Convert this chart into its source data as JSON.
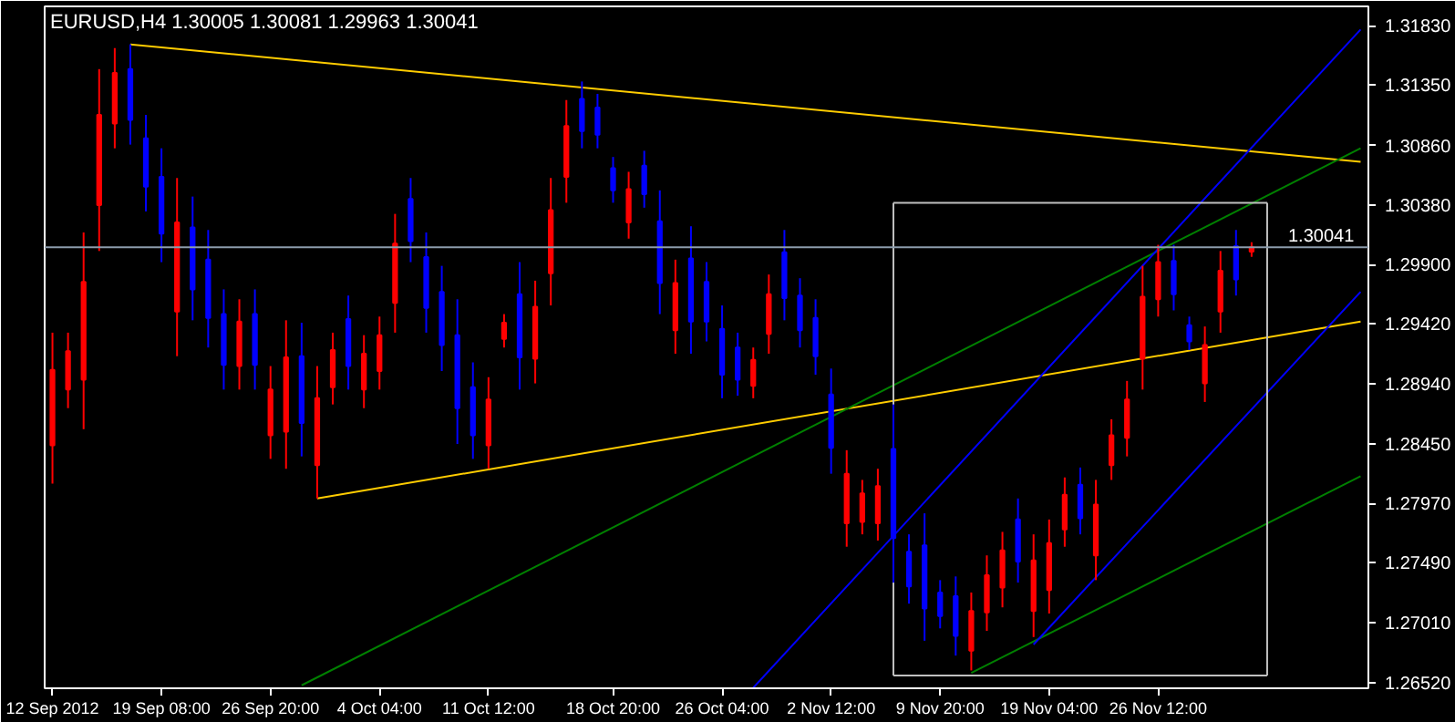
{
  "chart_data": {
    "type": "candlestick",
    "title": "EURUSD,H4  1.30005 1.30081 1.29963 1.30041",
    "categories": [
      "12 Sep 2012",
      null,
      null,
      null,
      null,
      null,
      null,
      "19 Sep 08:00",
      null,
      null,
      null,
      null,
      null,
      null,
      "26 Sep 20:00",
      null,
      null,
      null,
      null,
      null,
      null,
      "4 Oct 04:00",
      null,
      null,
      null,
      null,
      null,
      null,
      "11 Oct 12:00",
      null,
      null,
      null,
      null,
      null,
      null,
      null,
      "18 Oct 20:00",
      null,
      null,
      null,
      null,
      null,
      null,
      "26 Oct 04:00",
      null,
      null,
      null,
      null,
      null,
      null,
      "2 Nov 12:00",
      null,
      null,
      null,
      null,
      null,
      null,
      "9 Nov 20:00",
      null,
      null,
      null,
      null,
      null,
      null,
      "19 Nov 04:00",
      null,
      null,
      null,
      null,
      null,
      null,
      "26 Nov 12:00",
      null,
      null,
      null,
      null,
      null,
      null,
      null,
      null,
      null,
      null,
      null,
      null,
      null
    ],
    "ohlc": [
      [
        1.2844,
        1.2935,
        1.2813,
        1.2905
      ],
      [
        1.2889,
        1.2935,
        1.2874,
        1.292
      ],
      [
        1.2897,
        1.3016,
        1.2857,
        1.2976
      ],
      [
        1.3038,
        1.3148,
        1.3001,
        1.3111
      ],
      [
        1.3104,
        1.3165,
        1.3084,
        1.3145
      ],
      [
        1.3148,
        1.3168,
        1.3087,
        1.3107
      ],
      [
        1.3092,
        1.3111,
        1.3033,
        1.3053
      ],
      [
        1.3061,
        1.3084,
        1.2992,
        1.3015
      ],
      [
        1.2952,
        1.306,
        1.2916,
        1.3024
      ],
      [
        1.302,
        1.3045,
        1.2945,
        1.297
      ],
      [
        1.2994,
        1.3018,
        1.2923,
        1.2947
      ],
      [
        1.295,
        1.297,
        1.2889,
        1.2909
      ],
      [
        1.2908,
        1.2962,
        1.2889,
        1.2944
      ],
      [
        1.295,
        1.297,
        1.2889,
        1.2909
      ],
      [
        1.2852,
        1.2908,
        1.2833,
        1.2889
      ],
      [
        1.2855,
        1.2945,
        1.2825,
        1.2915
      ],
      [
        1.2916,
        1.2943,
        1.2835,
        1.2862
      ],
      [
        1.2828,
        1.2908,
        1.2801,
        1.2882
      ],
      [
        1.2891,
        1.2935,
        1.2877,
        1.2921
      ],
      [
        1.2946,
        1.2965,
        1.2889,
        1.2908
      ],
      [
        1.2889,
        1.2933,
        1.2874,
        1.2918
      ],
      [
        1.2904,
        1.2948,
        1.2889,
        1.2933
      ],
      [
        1.2959,
        1.3031,
        1.2935,
        1.3007
      ],
      [
        1.3043,
        1.306,
        1.2992,
        1.3009
      ],
      [
        1.2996,
        1.3016,
        1.2935,
        1.2955
      ],
      [
        1.2968,
        1.2989,
        1.2904,
        1.2925
      ],
      [
        1.2933,
        1.2962,
        1.2845,
        1.2874
      ],
      [
        1.2891,
        1.2911,
        1.2833,
        1.2852
      ],
      [
        1.2844,
        1.2899,
        1.2825,
        1.2881
      ],
      [
        1.293,
        1.295,
        1.2923,
        1.2943
      ],
      [
        1.2966,
        1.2992,
        1.2889,
        1.2915
      ],
      [
        1.2914,
        1.2977,
        1.2894,
        1.2956
      ],
      [
        1.2983,
        1.306,
        1.2957,
        1.3034
      ],
      [
        1.3061,
        1.3123,
        1.304,
        1.3102
      ],
      [
        1.3124,
        1.3138,
        1.3084,
        1.3098
      ],
      [
        1.3117,
        1.3128,
        1.3084,
        1.3095
      ],
      [
        1.3068,
        1.3077,
        1.304,
        1.305
      ],
      [
        1.3024,
        1.3065,
        1.3011,
        1.3051
      ],
      [
        1.307,
        1.3082,
        1.3036,
        1.3047
      ],
      [
        1.3025,
        1.305,
        1.295,
        1.2975
      ],
      [
        1.2937,
        1.2994,
        1.2918,
        1.2975
      ],
      [
        1.2995,
        1.3021,
        1.2918,
        1.2944
      ],
      [
        1.2976,
        1.2992,
        1.2928,
        1.2944
      ],
      [
        1.2938,
        1.2957,
        1.2882,
        1.2901
      ],
      [
        1.2923,
        1.2935,
        1.2884,
        1.2897
      ],
      [
        1.2892,
        1.2923,
        1.2882,
        1.2913
      ],
      [
        1.2934,
        1.2982,
        1.2918,
        1.2966
      ],
      [
        1.3,
        1.3018,
        1.2945,
        1.2963
      ],
      [
        1.2965,
        1.2979,
        1.2923,
        1.2937
      ],
      [
        1.2947,
        1.2962,
        1.2901,
        1.2916
      ],
      [
        1.2885,
        1.2906,
        1.2821,
        1.2842
      ],
      [
        1.2781,
        1.284,
        1.2762,
        1.2821
      ],
      [
        1.2782,
        1.2816,
        1.2772,
        1.2805
      ],
      [
        1.2781,
        1.2825,
        1.2767,
        1.2811
      ],
      [
        1.2841,
        1.2877,
        1.2733,
        1.2769
      ],
      [
        1.2758,
        1.2772,
        1.2716,
        1.273
      ],
      [
        1.2763,
        1.2789,
        1.2686,
        1.2712
      ],
      [
        1.2725,
        1.2735,
        1.2696,
        1.2706
      ],
      [
        1.2722,
        1.2738,
        1.2674,
        1.269
      ],
      [
        1.2678,
        1.2725,
        1.2662,
        1.271
      ],
      [
        1.2709,
        1.2755,
        1.2694,
        1.2739
      ],
      [
        1.2729,
        1.2774,
        1.2713,
        1.2759
      ],
      [
        1.2784,
        1.2801,
        1.2733,
        1.275
      ],
      [
        1.271,
        1.2772,
        1.2689,
        1.2751
      ],
      [
        1.2727,
        1.2784,
        1.2708,
        1.2765
      ],
      [
        1.2776,
        1.2818,
        1.2762,
        1.2804
      ],
      [
        1.2812,
        1.2826,
        1.2772,
        1.2785
      ],
      [
        1.2755,
        1.2816,
        1.2735,
        1.2796
      ],
      [
        1.2828,
        1.2865,
        1.2816,
        1.2852
      ],
      [
        1.285,
        1.2896,
        1.2835,
        1.2881
      ],
      [
        1.2914,
        1.2989,
        1.2889,
        1.2964
      ],
      [
        1.2962,
        1.3006,
        1.2948,
        1.2992
      ],
      [
        1.2993,
        1.3006,
        1.2953,
        1.2966
      ],
      [
        1.2941,
        1.2948,
        1.2921,
        1.2928
      ],
      [
        1.2894,
        1.294,
        1.2879,
        1.2925
      ],
      [
        1.2952,
        1.3001,
        1.2935,
        1.2985
      ],
      [
        1.3005,
        1.3018,
        1.2965,
        1.2978
      ],
      [
        1.30005,
        1.30081,
        1.29963,
        1.30041
      ],
      null,
      null,
      null,
      null,
      null,
      null,
      null
    ],
    "colors": [
      "#ff0000",
      "#ff0000",
      "#ff0000",
      "#ff0000",
      "#ff0000",
      "#0000ff",
      "#0000ff",
      "#0000ff",
      "#ff0000",
      "#0000ff",
      "#0000ff",
      "#0000ff",
      "#ff0000",
      "#0000ff",
      "#ff0000",
      "#ff0000",
      "#0000ff",
      "#ff0000",
      "#ff0000",
      "#0000ff",
      "#ff0000",
      "#ff0000",
      "#ff0000",
      "#0000ff",
      "#0000ff",
      "#0000ff",
      "#0000ff",
      "#0000ff",
      "#ff0000",
      "#ff0000",
      "#0000ff",
      "#ff0000",
      "#ff0000",
      "#ff0000",
      "#0000ff",
      "#0000ff",
      "#0000ff",
      "#ff0000",
      "#0000ff",
      "#0000ff",
      "#ff0000",
      "#0000ff",
      "#0000ff",
      "#0000ff",
      "#0000ff",
      "#ff0000",
      "#ff0000",
      "#0000ff",
      "#0000ff",
      "#0000ff",
      "#0000ff",
      "#ff0000",
      "#ff0000",
      "#ff0000",
      "#0000ff",
      "#0000ff",
      "#0000ff",
      "#0000ff",
      "#0000ff",
      "#ff0000",
      "#ff0000",
      "#ff0000",
      "#0000ff",
      "#ff0000",
      "#ff0000",
      "#ff0000",
      "#0000ff",
      "#ff0000",
      "#ff0000",
      "#ff0000",
      "#ff0000",
      "#ff0000",
      "#0000ff",
      "#0000ff",
      "#ff0000",
      "#ff0000",
      "#0000ff",
      "#ff0000",
      null,
      null,
      null,
      null,
      null,
      null,
      null
    ],
    "series": [
      {
        "type": "line",
        "color": "#ffcc00",
        "values": [
          null,
          null,
          null,
          null,
          null,
          1.3168,
          null,
          null,
          null,
          null,
          null,
          null,
          null,
          null,
          null,
          null,
          null,
          null,
          null,
          null,
          null,
          null,
          null,
          null,
          null,
          null,
          null,
          null,
          null,
          null,
          null,
          null,
          null,
          null,
          null,
          null,
          null,
          null,
          null,
          null,
          null,
          null,
          null,
          null,
          null,
          null,
          null,
          null,
          null,
          null,
          null,
          null,
          null,
          null,
          null,
          null,
          null,
          null,
          null,
          null,
          null,
          null,
          null,
          null,
          null,
          null,
          null,
          null,
          null,
          null,
          null,
          null,
          null,
          null,
          null,
          null,
          null,
          null,
          null,
          null,
          null,
          null,
          null,
          null,
          1.3073
        ]
      },
      {
        "type": "line",
        "color": "#ffcc00",
        "values": [
          null,
          null,
          null,
          null,
          null,
          null,
          null,
          null,
          null,
          null,
          null,
          null,
          null,
          null,
          null,
          null,
          null,
          1.2801,
          null,
          null,
          null,
          null,
          null,
          null,
          null,
          null,
          null,
          null,
          null,
          null,
          null,
          null,
          null,
          null,
          null,
          null,
          null,
          null,
          null,
          null,
          null,
          null,
          null,
          null,
          null,
          null,
          null,
          null,
          null,
          null,
          null,
          null,
          null,
          null,
          null,
          null,
          null,
          null,
          null,
          null,
          null,
          null,
          null,
          null,
          null,
          null,
          null,
          null,
          null,
          null,
          null,
          null,
          null,
          null,
          null,
          null,
          null,
          null,
          null,
          null,
          null,
          null,
          null,
          null,
          1.2944
        ]
      },
      {
        "type": "line",
        "color": "#008000",
        "values": [
          null,
          null,
          null,
          null,
          null,
          null,
          null,
          null,
          null,
          null,
          null,
          null,
          null,
          null,
          null,
          null,
          1.265,
          null,
          null,
          null,
          null,
          null,
          null,
          null,
          null,
          null,
          null,
          null,
          null,
          null,
          null,
          null,
          null,
          null,
          null,
          null,
          null,
          null,
          null,
          null,
          null,
          null,
          null,
          null,
          null,
          null,
          null,
          null,
          null,
          null,
          null,
          null,
          null,
          null,
          null,
          null,
          null,
          null,
          null,
          null,
          null,
          null,
          null,
          null,
          null,
          null,
          null,
          null,
          null,
          null,
          null,
          null,
          null,
          null,
          null,
          null,
          null,
          null,
          null,
          null,
          null,
          null,
          null,
          null,
          1.3084
        ]
      },
      {
        "type": "line",
        "color": "#008000",
        "values": [
          null,
          null,
          null,
          null,
          null,
          null,
          null,
          null,
          null,
          null,
          null,
          null,
          null,
          null,
          null,
          null,
          null,
          null,
          null,
          null,
          null,
          null,
          null,
          null,
          null,
          null,
          null,
          null,
          null,
          null,
          null,
          null,
          null,
          null,
          null,
          null,
          null,
          null,
          null,
          null,
          null,
          null,
          null,
          null,
          null,
          null,
          null,
          null,
          null,
          null,
          null,
          null,
          null,
          null,
          null,
          null,
          null,
          null,
          null,
          1.266,
          null,
          null,
          null,
          null,
          null,
          null,
          null,
          null,
          null,
          null,
          null,
          null,
          null,
          null,
          null,
          null,
          null,
          null,
          null,
          null,
          null,
          null,
          null,
          null,
          1.2819
        ]
      },
      {
        "type": "line",
        "color": "#0000ff",
        "values": [
          null,
          null,
          null,
          null,
          null,
          null,
          null,
          null,
          null,
          null,
          null,
          null,
          null,
          null,
          null,
          null,
          null,
          null,
          null,
          null,
          null,
          null,
          null,
          null,
          null,
          null,
          null,
          null,
          null,
          null,
          null,
          null,
          null,
          null,
          null,
          null,
          null,
          null,
          null,
          null,
          null,
          null,
          null,
          null,
          null,
          1.2648,
          null,
          null,
          null,
          null,
          null,
          null,
          null,
          null,
          null,
          null,
          null,
          null,
          null,
          null,
          null,
          null,
          null,
          null,
          null,
          null,
          null,
          null,
          null,
          null,
          null,
          null,
          null,
          null,
          null,
          null,
          null,
          null,
          null,
          null,
          null,
          null,
          null,
          null,
          1.318
        ]
      },
      {
        "type": "line",
        "color": "#0000ff",
        "values": [
          null,
          null,
          null,
          null,
          null,
          null,
          null,
          null,
          null,
          null,
          null,
          null,
          null,
          null,
          null,
          null,
          null,
          null,
          null,
          null,
          null,
          null,
          null,
          null,
          null,
          null,
          null,
          null,
          null,
          null,
          null,
          null,
          null,
          null,
          null,
          null,
          null,
          null,
          null,
          null,
          null,
          null,
          null,
          null,
          null,
          null,
          null,
          null,
          null,
          null,
          null,
          null,
          null,
          null,
          null,
          null,
          null,
          null,
          null,
          null,
          null,
          null,
          null,
          1.2683,
          null,
          null,
          null,
          null,
          null,
          null,
          null,
          null,
          null,
          null,
          null,
          null,
          null,
          null,
          null,
          null,
          null,
          null,
          null,
          null,
          1.2968
        ]
      },
      {
        "type": "line",
        "color": "#c0c0c0",
        "values": [
          null,
          null,
          null,
          null,
          null,
          null,
          null,
          null,
          null,
          null,
          null,
          null,
          null,
          null,
          null,
          null,
          null,
          null,
          null,
          null,
          null,
          null,
          null,
          null,
          null,
          null,
          null,
          null,
          null,
          null,
          null,
          null,
          null,
          null,
          null,
          null,
          null,
          null,
          null,
          null,
          null,
          null,
          null,
          null,
          null,
          null,
          null,
          null,
          null,
          null,
          null,
          null,
          null,
          null,
          1.304,
          1.304,
          1.304,
          1.304,
          1.304,
          1.304,
          1.304,
          1.304,
          1.304,
          1.304,
          1.304,
          1.304,
          1.304,
          1.304,
          1.304,
          1.304,
          1.304,
          1.304,
          1.304,
          1.304,
          1.304,
          1.304,
          1.304,
          1.304,
          1.304,
          null,
          null,
          null,
          null,
          null,
          null
        ]
      },
      {
        "type": "line",
        "color": "#c0c0c0",
        "values": [
          null,
          null,
          null,
          null,
          null,
          null,
          null,
          null,
          null,
          null,
          null,
          null,
          null,
          null,
          null,
          null,
          null,
          null,
          null,
          null,
          null,
          null,
          null,
          null,
          null,
          null,
          null,
          null,
          null,
          null,
          null,
          null,
          null,
          null,
          null,
          null,
          null,
          null,
          null,
          null,
          null,
          null,
          null,
          null,
          null,
          null,
          null,
          null,
          null,
          null,
          null,
          null,
          null,
          null,
          1.2658,
          1.2658,
          1.2658,
          1.2658,
          1.2658,
          1.2658,
          1.2658,
          1.2658,
          1.2658,
          1.2658,
          1.2658,
          1.2658,
          1.2658,
          1.2658,
          1.2658,
          1.2658,
          1.2658,
          1.2658,
          1.2658,
          1.2658,
          1.2658,
          1.2658,
          1.2658,
          1.2658,
          1.2658,
          null,
          null,
          null,
          null,
          null,
          null
        ]
      }
    ],
    "ref_lines": [
      {
        "axis": "y",
        "value": 1.30041,
        "label": "1.30041",
        "color": "#8c9cac"
      }
    ],
    "ylim": [
      1.26476,
      1.31987
    ],
    "yticks": [
      {
        "value": 1.3183,
        "label": "1.31830"
      },
      {
        "value": 1.3135,
        "label": "1.31350"
      },
      {
        "value": 1.3086,
        "label": "1.30860"
      },
      {
        "value": 1.3038,
        "label": "1.30380"
      },
      {
        "value": 1.299,
        "label": "1.29900"
      },
      {
        "value": 1.2942,
        "label": "1.29420"
      },
      {
        "value": 1.2894,
        "label": "1.28940"
      },
      {
        "value": 1.2845,
        "label": "1.28450"
      },
      {
        "value": 1.2797,
        "label": "1.27970"
      },
      {
        "value": 1.2749,
        "label": "1.27490"
      },
      {
        "value": 1.2701,
        "label": "1.27010"
      },
      {
        "value": 1.2652,
        "label": "1.26520"
      }
    ],
    "grid": false
  }
}
